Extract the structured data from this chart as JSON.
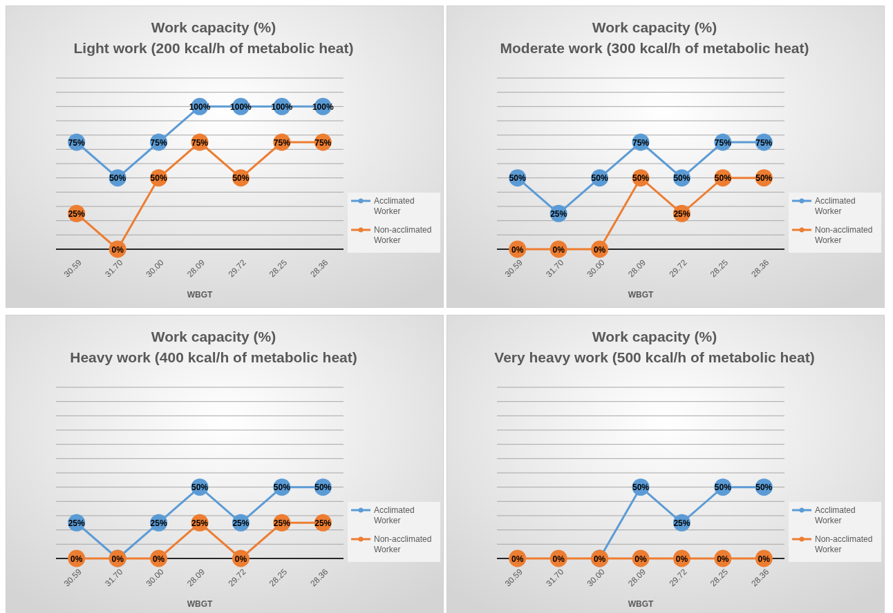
{
  "chart_data": [
    {
      "type": "line",
      "title": "Work capacity (%)",
      "subtitle": "Light work (200 kcal/h of metabolic heat)",
      "xlabel": "WBGT",
      "categories": [
        "30.59",
        "31.70",
        "30.00",
        "28.09",
        "29.72",
        "28.25",
        "28.36"
      ],
      "ylim": [
        0,
        120
      ],
      "yticks": [
        {
          "value": 0,
          "label": null
        },
        {
          "value": 10,
          "label": null
        },
        {
          "value": 20,
          "label": null
        },
        {
          "value": 30,
          "label": null
        },
        {
          "value": 40,
          "label": null
        },
        {
          "value": 50,
          "label": null
        },
        {
          "value": 60,
          "label": null
        },
        {
          "value": 70,
          "label": null
        },
        {
          "value": 80,
          "label": null
        },
        {
          "value": 90,
          "label": null
        },
        {
          "value": 100,
          "label": null
        },
        {
          "value": 110,
          "label": null
        },
        {
          "value": 120,
          "label": null
        }
      ],
      "grid": "y",
      "legend": "right",
      "marker": "circle",
      "line_style": "solid",
      "series": [
        {
          "name": "Acclimated Worker",
          "color": "#5b9bd5",
          "values": [
            75,
            50,
            75,
            100,
            100,
            100,
            100
          ],
          "value_labels": [
            "75%",
            "50%",
            "75%",
            "100%",
            "100%",
            "100%",
            "100%"
          ]
        },
        {
          "name": "Non-acclimated Worker",
          "color": "#ed7d31",
          "values": [
            25,
            0,
            50,
            75,
            50,
            75,
            75
          ],
          "value_labels": [
            "25%",
            "0%",
            "50%",
            "75%",
            "50%",
            "75%",
            "75%"
          ]
        }
      ]
    },
    {
      "type": "line",
      "title": "Work capacity (%)",
      "subtitle": "Moderate work (300 kcal/h of metabolic heat)",
      "xlabel": "WBGT",
      "categories": [
        "30.59",
        "31.70",
        "30.00",
        "28.09",
        "29.72",
        "28.25",
        "28.36"
      ],
      "ylim": [
        0,
        120
      ],
      "yticks": [
        {
          "value": 0,
          "label": null
        },
        {
          "value": 10,
          "label": null
        },
        {
          "value": 20,
          "label": null
        },
        {
          "value": 30,
          "label": null
        },
        {
          "value": 40,
          "label": null
        },
        {
          "value": 50,
          "label": null
        },
        {
          "value": 60,
          "label": null
        },
        {
          "value": 70,
          "label": null
        },
        {
          "value": 80,
          "label": null
        },
        {
          "value": 90,
          "label": null
        },
        {
          "value": 100,
          "label": null
        },
        {
          "value": 110,
          "label": null
        },
        {
          "value": 120,
          "label": null
        }
      ],
      "grid": "y",
      "legend": "right",
      "marker": "circle",
      "line_style": "solid",
      "series": [
        {
          "name": "Acclimated Worker",
          "color": "#5b9bd5",
          "values": [
            50,
            25,
            50,
            75,
            50,
            75,
            75
          ],
          "value_labels": [
            "50%",
            "25%",
            "50%",
            "75%",
            "50%",
            "75%",
            "75%"
          ]
        },
        {
          "name": "Non-acclimated Worker",
          "color": "#ed7d31",
          "values": [
            0,
            0,
            0,
            50,
            25,
            50,
            50
          ],
          "value_labels": [
            "0%",
            "0%",
            "0%",
            "50%",
            "25%",
            "50%",
            "50%"
          ]
        }
      ]
    },
    {
      "type": "line",
      "title": "Work capacity (%)",
      "subtitle": "Heavy work (400 kcal/h of metabolic heat)",
      "xlabel": "WBGT",
      "categories": [
        "30.59",
        "31.70",
        "30.00",
        "28.09",
        "29.72",
        "28.25",
        "28.36"
      ],
      "ylim": [
        0,
        120
      ],
      "yticks": [
        {
          "value": 0,
          "label": null
        },
        {
          "value": 10,
          "label": null
        },
        {
          "value": 20,
          "label": null
        },
        {
          "value": 30,
          "label": null
        },
        {
          "value": 40,
          "label": null
        },
        {
          "value": 50,
          "label": null
        },
        {
          "value": 60,
          "label": null
        },
        {
          "value": 70,
          "label": null
        },
        {
          "value": 80,
          "label": null
        },
        {
          "value": 90,
          "label": null
        },
        {
          "value": 100,
          "label": null
        },
        {
          "value": 110,
          "label": null
        },
        {
          "value": 120,
          "label": null
        }
      ],
      "grid": "y",
      "legend": "right",
      "marker": "circle",
      "line_style": "solid",
      "series": [
        {
          "name": "Acclimated Worker",
          "color": "#5b9bd5",
          "values": [
            25,
            0,
            25,
            50,
            25,
            50,
            50
          ],
          "value_labels": [
            "25%",
            null,
            "25%",
            "50%",
            "25%",
            "50%",
            "50%"
          ]
        },
        {
          "name": "Non-acclimated Worker",
          "color": "#ed7d31",
          "values": [
            0,
            0,
            0,
            25,
            0,
            25,
            25
          ],
          "value_labels": [
            "0%",
            "0%",
            "0%",
            "25%",
            "0%",
            "25%",
            "25%"
          ]
        }
      ]
    },
    {
      "type": "line",
      "title": "Work capacity (%)",
      "subtitle": "Very heavy work (500 kcal/h of metabolic heat)",
      "xlabel": "WBGT",
      "categories": [
        "30.59",
        "31.70",
        "30.00",
        "28.09",
        "29.72",
        "28.25",
        "28.36"
      ],
      "ylim": [
        0,
        120
      ],
      "yticks": [
        {
          "value": 0,
          "label": null
        },
        {
          "value": 10,
          "label": null
        },
        {
          "value": 20,
          "label": null
        },
        {
          "value": 30,
          "label": null
        },
        {
          "value": 40,
          "label": null
        },
        {
          "value": 50,
          "label": null
        },
        {
          "value": 60,
          "label": null
        },
        {
          "value": 70,
          "label": null
        },
        {
          "value": 80,
          "label": null
        },
        {
          "value": 90,
          "label": null
        },
        {
          "value": 100,
          "label": null
        },
        {
          "value": 110,
          "label": null
        },
        {
          "value": 120,
          "label": null
        }
      ],
      "grid": "y",
      "legend": "right",
      "marker": "circle",
      "line_style": "solid",
      "series": [
        {
          "name": "Acclimated Worker",
          "color": "#5b9bd5",
          "values": [
            null,
            null,
            0,
            50,
            25,
            50,
            50
          ],
          "value_labels": [
            null,
            null,
            null,
            "50%",
            "25%",
            "50%",
            "50%"
          ]
        },
        {
          "name": "Non-acclimated Worker",
          "color": "#ed7d31",
          "values": [
            0,
            0,
            0,
            0,
            0,
            0,
            0
          ],
          "value_labels": [
            "0%",
            "0%",
            "0%",
            "0%",
            "0%",
            "0%",
            "0%"
          ]
        }
      ]
    }
  ]
}
